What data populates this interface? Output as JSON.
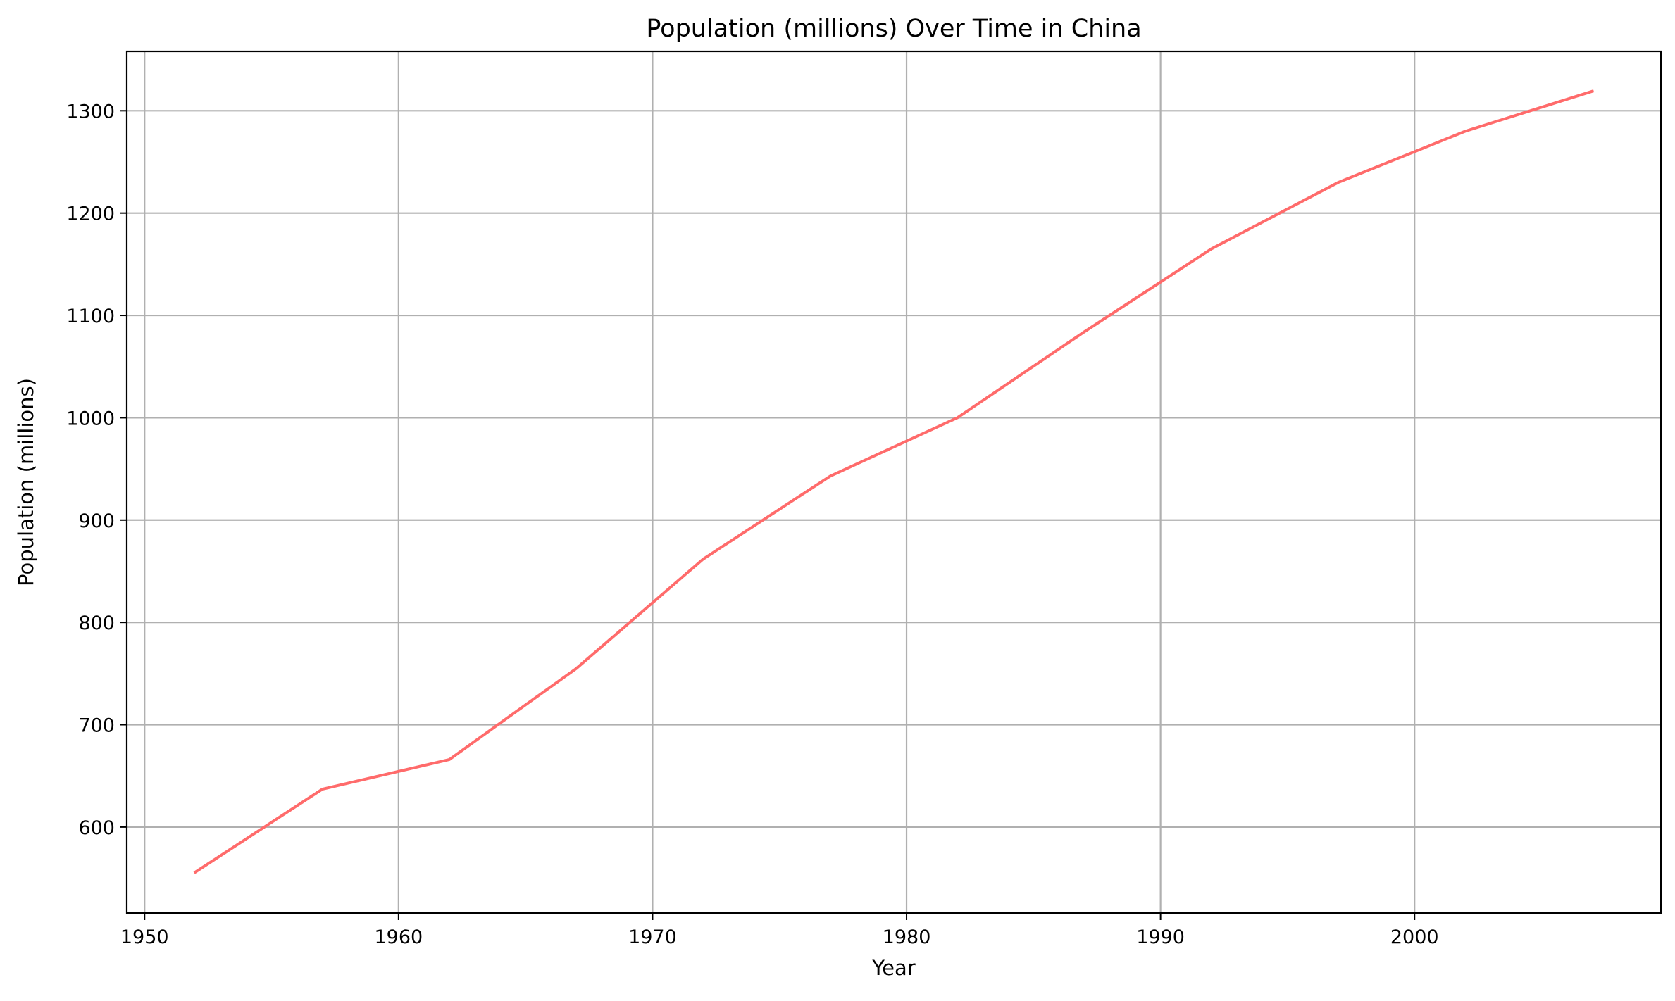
{
  "chart_data": {
    "type": "line",
    "title": "Population (millions) Over Time in China",
    "xlabel": "Year",
    "ylabel": "Population (millions)",
    "xlim": [
      1949.3,
      2009.7
    ],
    "ylim": [
      516,
      1358
    ],
    "xticks": [
      1950,
      1960,
      1970,
      1980,
      1990,
      2000
    ],
    "yticks": [
      600,
      700,
      800,
      900,
      1000,
      1100,
      1200,
      1300
    ],
    "grid": true,
    "legend": "none",
    "series": [
      {
        "color": "#ff6b6b",
        "x": [
          1952,
          1957,
          1962,
          1967,
          1972,
          1977,
          1982,
          1987,
          1992,
          1997,
          2002,
          2007
        ],
        "values": [
          556,
          637,
          666,
          755,
          862,
          943,
          1000,
          1084,
          1165,
          1230,
          1280,
          1319
        ]
      }
    ]
  }
}
